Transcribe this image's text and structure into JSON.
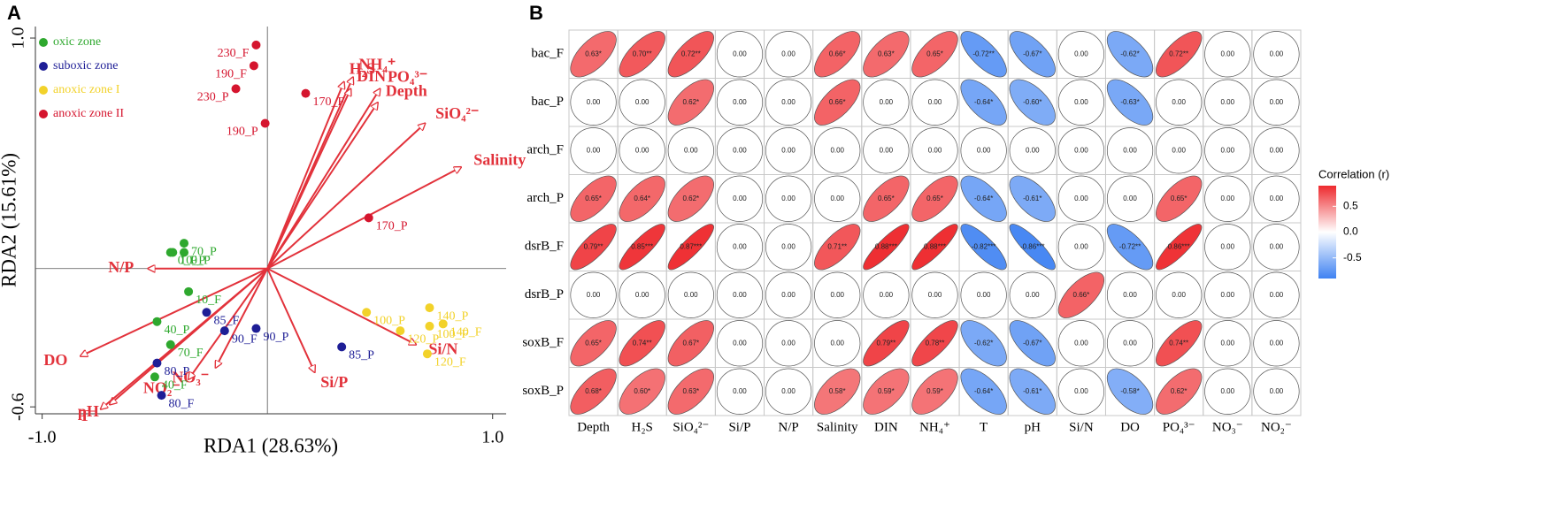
{
  "chart_data": [
    {
      "type": "biplot",
      "panel_label": "A",
      "xlabel": "RDA1 (28.63%)",
      "ylabel": "RDA2 (15.61%)",
      "xlim": [
        -1.03,
        1.06
      ],
      "ylim": [
        -0.63,
        1.05
      ],
      "xticks": [
        {
          "value": -1,
          "label": "-1.0"
        },
        {
          "value": 1,
          "label": "1.0"
        }
      ],
      "yticks": [
        {
          "value": 1,
          "label": "1.0"
        },
        {
          "value": -0.6,
          "label": "-0.6"
        }
      ],
      "legend": "upper left",
      "series": [
        {
          "name": "oxic zone",
          "color": "#2ea82e",
          "labels": [
            "70_P",
            "10_P",
            "0_P",
            "0_F",
            "10_F",
            "40_P",
            "70_F",
            "40_F"
          ],
          "x": [
            -0.37,
            -0.42,
            -0.37,
            -0.43,
            -0.35,
            -0.49,
            -0.43,
            -0.5
          ],
          "values": [
            0.11,
            0.07,
            0.07,
            0.07,
            -0.1,
            -0.23,
            -0.33,
            -0.47
          ]
        },
        {
          "name": "suboxic zone",
          "color": "#1e1e96",
          "labels": [
            "85_F",
            "90_F",
            "90_P",
            "80_P",
            "80_F",
            "85_P"
          ],
          "x": [
            -0.27,
            -0.19,
            -0.05,
            -0.49,
            -0.47,
            0.33
          ],
          "values": [
            -0.19,
            -0.27,
            -0.26,
            -0.41,
            -0.55,
            -0.34
          ]
        },
        {
          "name": "anoxic zone I",
          "color": "#f2d22a",
          "labels": [
            "100_P",
            "140_P",
            "140_F",
            "100_F",
            "120_P",
            "120_F"
          ],
          "x": [
            0.44,
            0.72,
            0.78,
            0.72,
            0.59,
            0.71
          ],
          "values": [
            -0.19,
            -0.17,
            -0.24,
            -0.25,
            -0.27,
            -0.37
          ]
        },
        {
          "name": "anoxic zone II",
          "color": "#d5152e",
          "labels": [
            "230_F",
            "190_F",
            "230_P",
            "190_P",
            "170_F",
            "170_P"
          ],
          "x": [
            -0.05,
            -0.06,
            -0.14,
            -0.01,
            0.17,
            0.45
          ],
          "values": [
            0.97,
            0.88,
            0.78,
            0.63,
            0.76,
            0.22
          ]
        }
      ],
      "vector_color": "#e2323b",
      "vectors": [
        {
          "label": "H₂S",
          "x": 0.34,
          "y": 0.81
        },
        {
          "label": "NH₄⁺",
          "x": 0.38,
          "y": 0.83
        },
        {
          "label": "DIN",
          "x": 0.37,
          "y": 0.78
        },
        {
          "label": "PO₄³⁻",
          "x": 0.5,
          "y": 0.78
        },
        {
          "label": "Depth",
          "x": 0.49,
          "y": 0.72
        },
        {
          "label": "SiO₄²⁻",
          "x": 0.7,
          "y": 0.63
        },
        {
          "label": "Salinity",
          "x": 0.86,
          "y": 0.44
        },
        {
          "label": "Si/N",
          "x": 0.66,
          "y": -0.33
        },
        {
          "label": "Si/P",
          "x": 0.21,
          "y": -0.45
        },
        {
          "label": "NO₃⁻",
          "x": -0.23,
          "y": -0.43
        },
        {
          "label": "NO₂⁻",
          "x": -0.35,
          "y": -0.48
        },
        {
          "label": "pH",
          "x": -0.7,
          "y": -0.59
        },
        {
          "label": "T",
          "x": -0.74,
          "y": -0.61
        },
        {
          "label": "DO",
          "x": -0.83,
          "y": -0.38
        },
        {
          "label": "N/P",
          "x": -0.53,
          "y": 0.0
        }
      ]
    },
    {
      "type": "corrmatrix",
      "panel_label": "B",
      "legend_title": "Correlation (r)",
      "rows": [
        "bac_F",
        "bac_P",
        "arch_F",
        "arch_P",
        "dsrB_F",
        "dsrB_P",
        "soxB_F",
        "soxB_P"
      ],
      "columns": [
        "Depth",
        "H₂S",
        "SiO₄²⁻",
        "Si/P",
        "N/P",
        "Salinity",
        "DIN",
        "NH₄⁺",
        "T",
        "pH",
        "Si/N",
        "DO",
        "PO₄³⁻",
        "NO₃⁻",
        "NO₂⁻"
      ],
      "values": [
        [
          0.63,
          0.7,
          0.72,
          0,
          0,
          0.66,
          0.63,
          0.65,
          -0.72,
          -0.67,
          0,
          -0.62,
          0.72,
          0,
          0
        ],
        [
          0,
          0,
          0.62,
          0,
          0,
          0.66,
          0,
          0,
          -0.64,
          -0.6,
          0,
          -0.63,
          0,
          0,
          0
        ],
        [
          0,
          0,
          0,
          0,
          0,
          0,
          0,
          0,
          0,
          0,
          0,
          0,
          0,
          0,
          0
        ],
        [
          0.65,
          0.64,
          0.62,
          0,
          0,
          0,
          0.65,
          0.65,
          -0.64,
          -0.61,
          0,
          0,
          0.65,
          0,
          0
        ],
        [
          0.79,
          0.85,
          0.87,
          0,
          0,
          0.71,
          0.88,
          0.88,
          -0.82,
          -0.86,
          0,
          -0.72,
          0.86,
          0,
          0
        ],
        [
          0,
          0,
          0,
          0,
          0,
          0,
          0,
          0,
          0,
          0,
          0.66,
          0,
          0,
          0,
          0
        ],
        [
          0.65,
          0.74,
          0.67,
          0,
          0,
          0,
          0.79,
          0.78,
          -0.62,
          -0.67,
          0,
          0,
          0.74,
          0,
          0
        ],
        [
          0.68,
          0.6,
          0.63,
          0,
          0,
          0.58,
          0.59,
          0.59,
          -0.64,
          -0.61,
          0,
          -0.58,
          0.62,
          0,
          0
        ]
      ],
      "value_labels": [
        [
          "0.63*",
          "0.70**",
          "0.72**",
          "0.00",
          "0.00",
          "0.66*",
          "0.63*",
          "0.65*",
          "-0.72**",
          "-0.67*",
          "0.00",
          "-0.62*",
          "0.72**",
          "0.00",
          "0.00"
        ],
        [
          "0.00",
          "0.00",
          "0.62*",
          "0.00",
          "0.00",
          "0.66*",
          "0.00",
          "0.00",
          "-0.64*",
          "-0.60*",
          "0.00",
          "-0.63*",
          "0.00",
          "0.00",
          "0.00"
        ],
        [
          "0.00",
          "0.00",
          "0.00",
          "0.00",
          "0.00",
          "0.00",
          "0.00",
          "0.00",
          "0.00",
          "0.00",
          "0.00",
          "0.00",
          "0.00",
          "0.00",
          "0.00"
        ],
        [
          "0.65*",
          "0.64*",
          "0.62*",
          "0.00",
          "0.00",
          "0.00",
          "0.65*",
          "0.65*",
          "-0.64*",
          "-0.61*",
          "0.00",
          "0.00",
          "0.65*",
          "0.00",
          "0.00"
        ],
        [
          "0.79**",
          "0.85***",
          "0.87***",
          "0.00",
          "0.00",
          "0.71**",
          "0.88***",
          "0.88***",
          "-0.82***",
          "-0.86***",
          "0.00",
          "-0.72**",
          "0.86***",
          "0.00",
          "0.00"
        ],
        [
          "0.00",
          "0.00",
          "0.00",
          "0.00",
          "0.00",
          "0.00",
          "0.00",
          "0.00",
          "0.00",
          "0.00",
          "0.66*",
          "0.00",
          "0.00",
          "0.00",
          "0.00"
        ],
        [
          "0.65*",
          "0.74**",
          "0.67*",
          "0.00",
          "0.00",
          "0.00",
          "0.79**",
          "0.78**",
          "-0.62*",
          "-0.67*",
          "0.00",
          "0.00",
          "0.74**",
          "0.00",
          "0.00"
        ],
        [
          "0.68*",
          "0.60*",
          "0.63*",
          "0.00",
          "0.00",
          "0.58*",
          "0.59*",
          "0.59*",
          "-0.64*",
          "-0.61*",
          "0.00",
          "-0.58*",
          "0.62*",
          "0.00",
          "0.00"
        ]
      ],
      "clim": [
        -0.9,
        0.9
      ],
      "cticks": [
        0.5,
        {
          "value": 0,
          "label": "0.0"
        },
        -0.5
      ],
      "colormap": [
        "#3f82f2",
        "#ffffff",
        "#ee2a2e"
      ]
    }
  ]
}
